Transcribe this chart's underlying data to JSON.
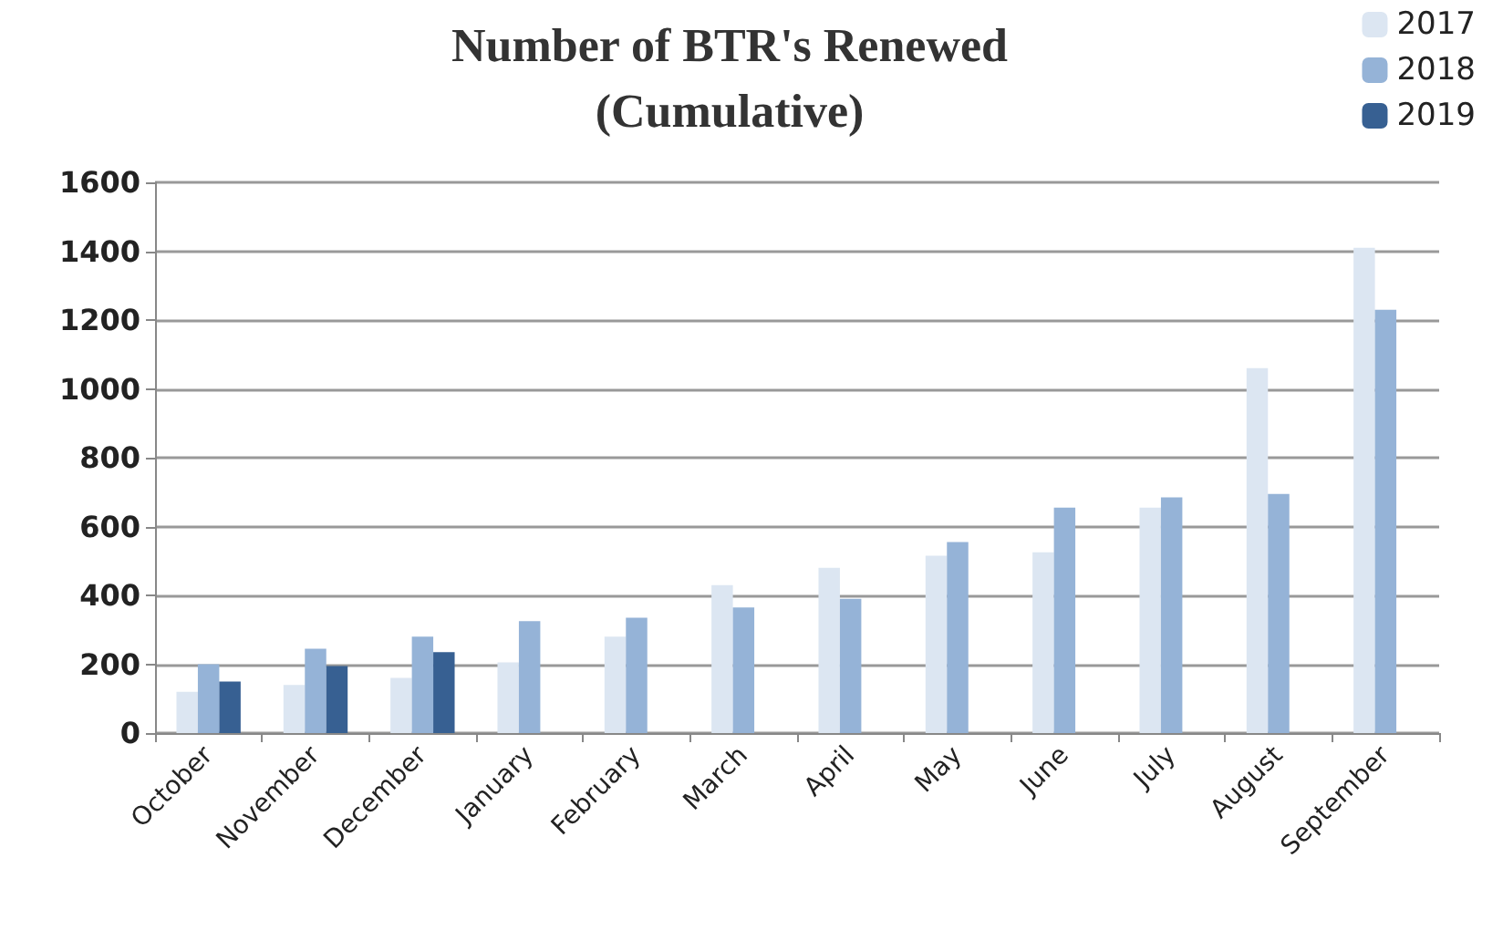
{
  "chart_data": {
    "type": "bar",
    "title": "Number of BTR's Renewed\n(Cumulative)",
    "categories": [
      "October",
      "November",
      "December",
      "January",
      "February",
      "March",
      "April",
      "May",
      "June",
      "July",
      "August",
      "September"
    ],
    "series": [
      {
        "name": "2017",
        "color": "#dce6f2",
        "values": [
          120,
          140,
          160,
          205,
          280,
          430,
          480,
          515,
          525,
          655,
          1060,
          1410
        ]
      },
      {
        "name": "2018",
        "color": "#95b3d7",
        "values": [
          200,
          245,
          280,
          325,
          335,
          365,
          390,
          555,
          655,
          685,
          695,
          1230
        ]
      },
      {
        "name": "2019",
        "color": "#376092",
        "values": [
          150,
          195,
          235,
          null,
          null,
          null,
          null,
          null,
          null,
          null,
          null,
          null
        ]
      }
    ],
    "ylim": [
      0,
      1600
    ],
    "yticks": [
      0,
      200,
      400,
      600,
      800,
      1000,
      1200,
      1400,
      1600
    ],
    "grid": "y",
    "legend": "top right"
  }
}
